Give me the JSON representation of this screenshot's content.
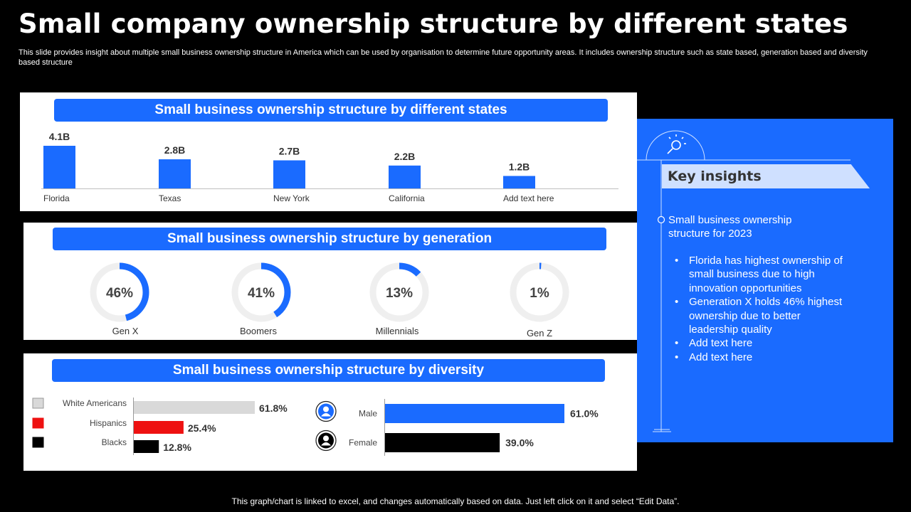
{
  "title": "Small company ownership structure by different states",
  "subtitle": "This slide provides insight about multiple small business ownership structure in America which can be used by organisation to determine future opportunity areas. It includes ownership structure such as state based, generation based and diversity based structure",
  "footer": "This graph/chart is linked to excel,  and changes automatically based on data. Just left click on it and select “Edit Data”.",
  "colors": {
    "accent": "#1a6bff",
    "background": "#000000",
    "light_accent": "#cfe0ff",
    "hispanics": "#ee1111",
    "blacks": "#000000",
    "white_americans": "#d9d9d9"
  },
  "insights": {
    "icon": "lightbulb-magnifier-icon",
    "title": "Key insights",
    "lead": "Small business ownership structure  for 2023",
    "bullets": [
      "Florida has highest ownership of small business due to high innovation opportunities",
      "Generation X holds 46% highest ownership due to better leadership quality",
      "Add text here",
      "Add text here"
    ]
  },
  "chart_data": [
    {
      "type": "bar",
      "title": "Small business ownership structure by different states",
      "categories": [
        "Florida",
        "Texas",
        "New York",
        "California",
        "Add text here"
      ],
      "values": [
        4.1,
        2.8,
        2.7,
        2.2,
        1.2
      ],
      "value_labels": [
        "4.1B",
        "2.8B",
        "2.7B",
        "2.2B",
        "1.2B"
      ],
      "ylim": [
        0,
        4.1
      ]
    },
    {
      "type": "pie",
      "title": "Small business ownership structure by generation",
      "categories": [
        "Gen X",
        "Boomers",
        "Millennials",
        "Gen Z"
      ],
      "values": [
        46,
        41,
        13,
        1
      ],
      "value_labels": [
        "46%",
        "41%",
        "13%",
        "1%"
      ]
    },
    {
      "type": "bar",
      "title": "Small business ownership structure by diversity",
      "groups": [
        {
          "categories": [
            "White Americans",
            "Hispanics",
            "Blacks"
          ],
          "values": [
            61.8,
            25.4,
            12.8
          ],
          "value_labels": [
            "61.8%",
            "25.4%",
            "12.8%"
          ],
          "colors": [
            "#d9d9d9",
            "#ee1111",
            "#000000"
          ]
        },
        {
          "categories": [
            "Male",
            "Female"
          ],
          "values": [
            61.0,
            39.0
          ],
          "value_labels": [
            "61.0%",
            "39.0%"
          ],
          "icons": [
            "male-avatar-icon",
            "female-avatar-icon"
          ],
          "colors": [
            "#1a6bff",
            "#000000"
          ]
        }
      ]
    }
  ]
}
